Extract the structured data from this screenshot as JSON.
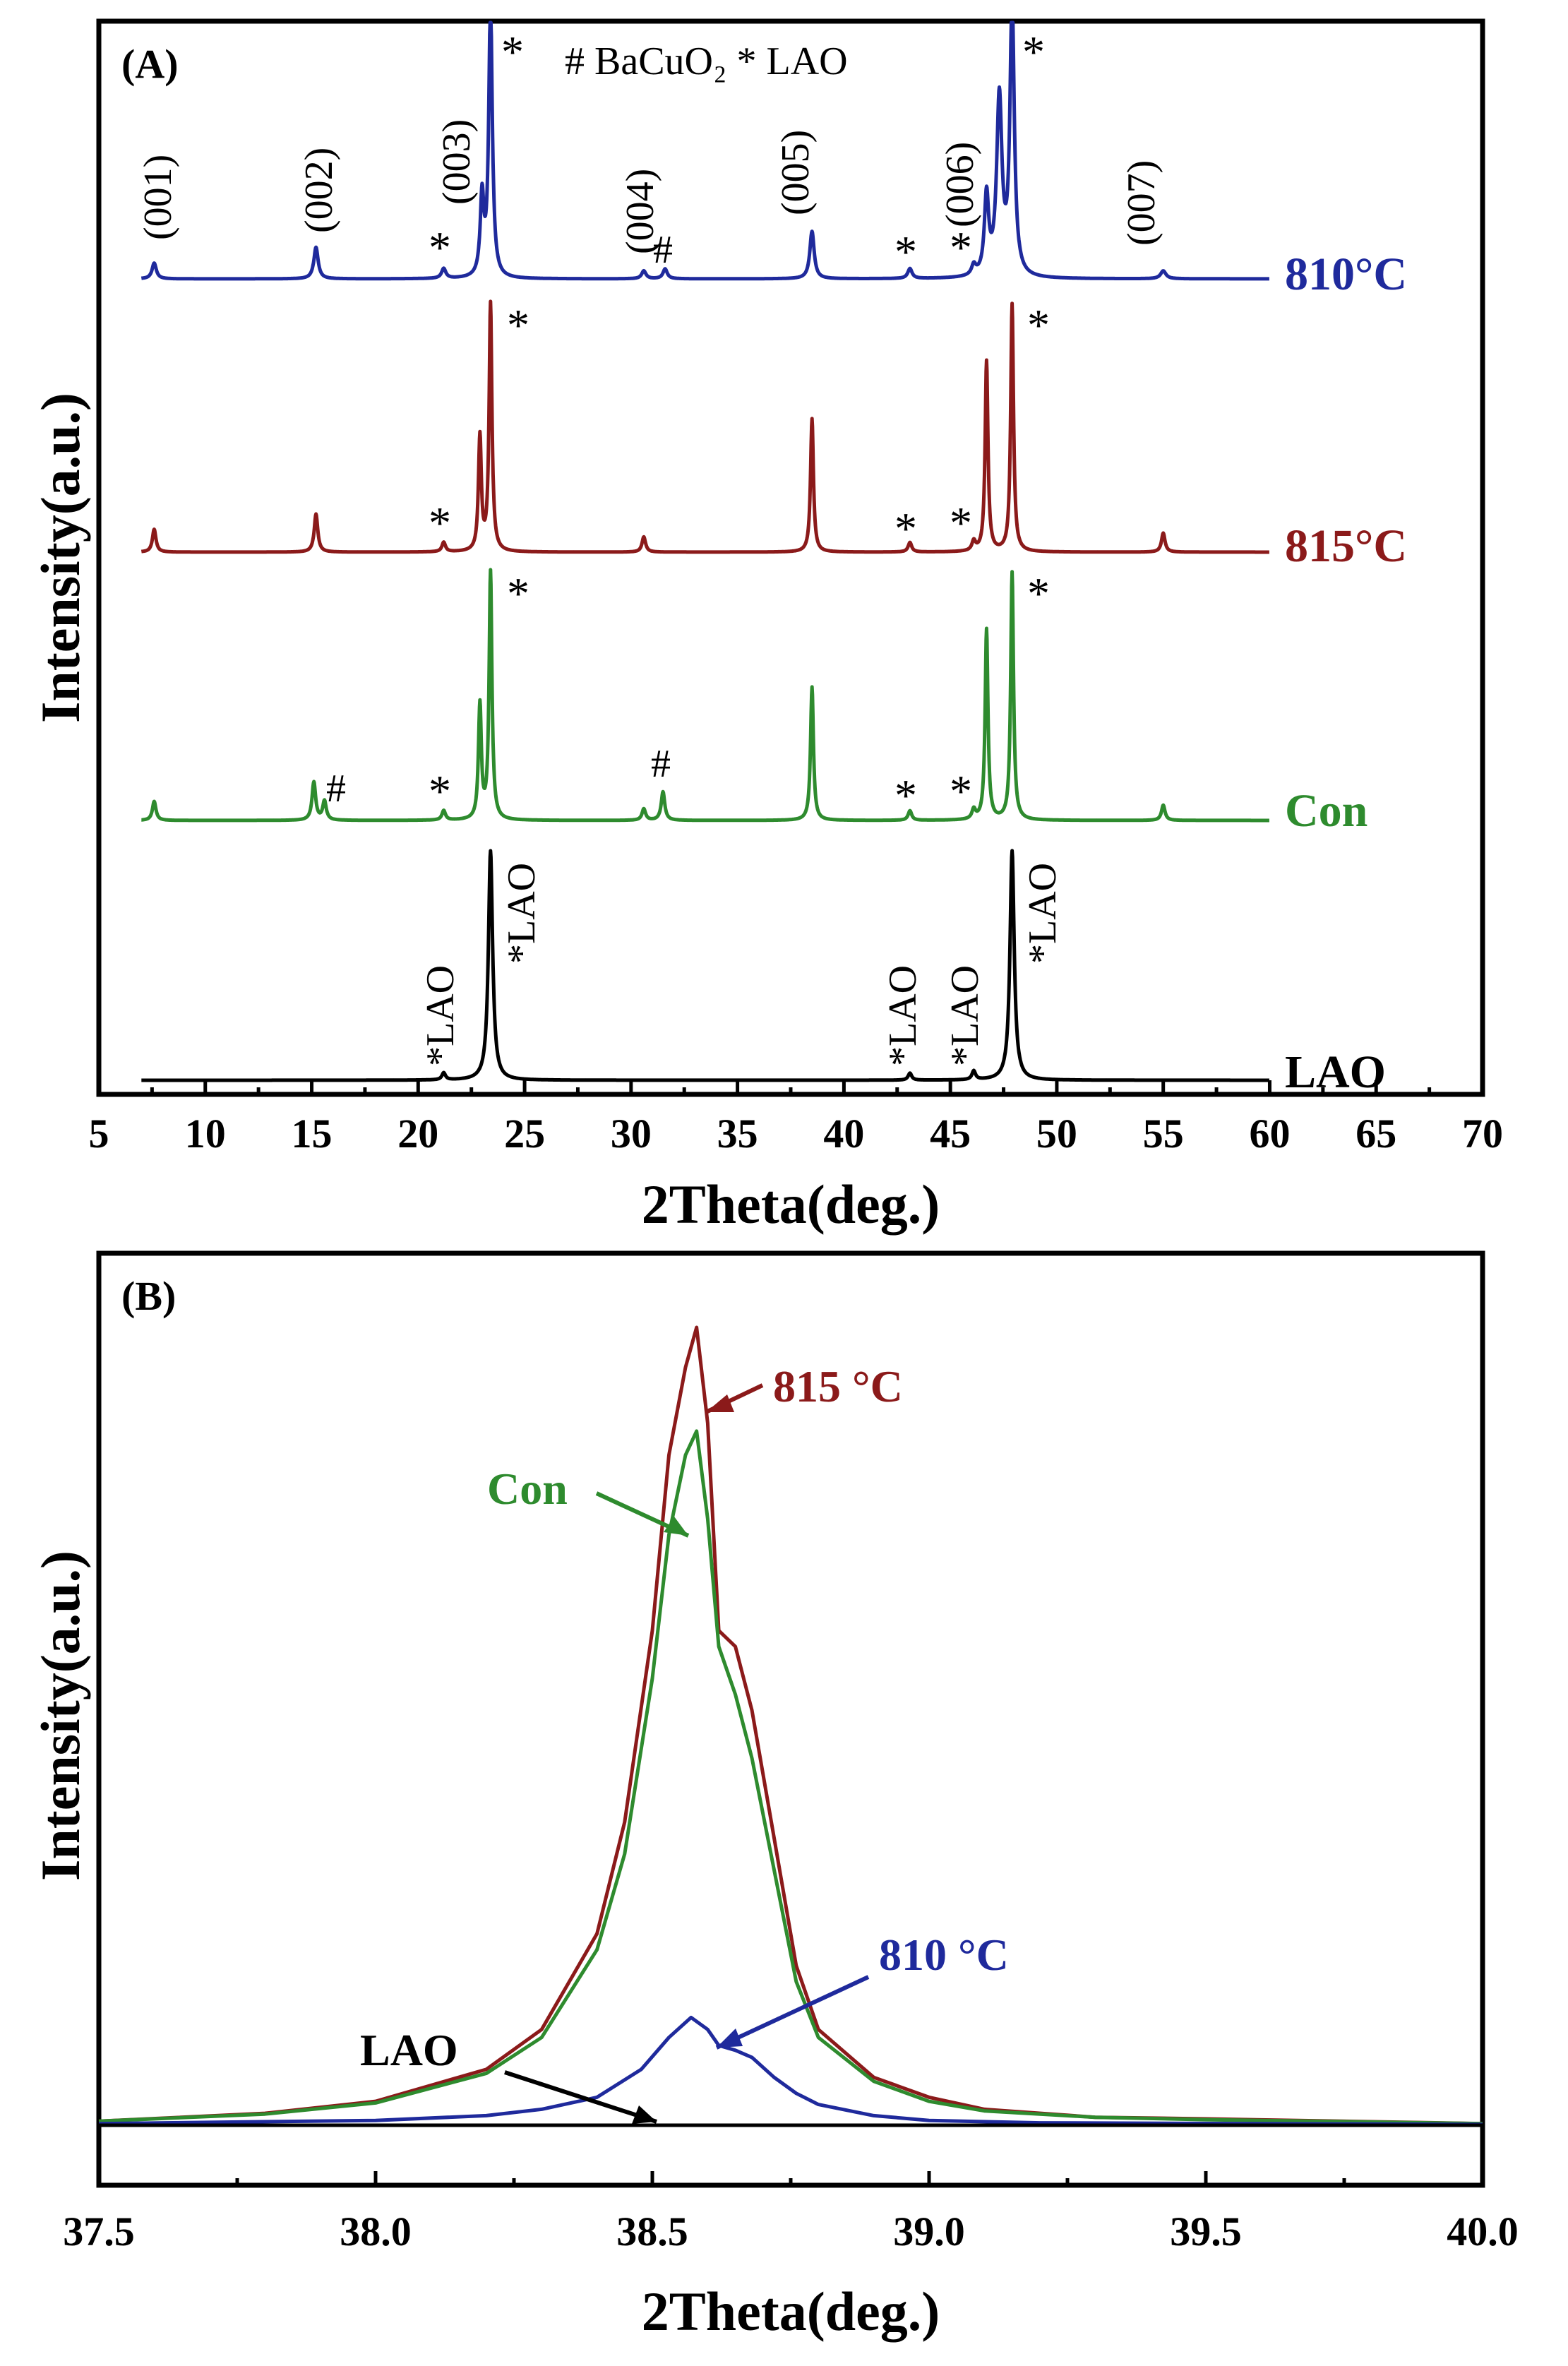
{
  "chart_data": [
    {
      "panel_label": "(A)",
      "type": "line",
      "xlabel": "2Theta(deg.)",
      "ylabel": "Intensity(a.u.)",
      "xlim": [
        5,
        70
      ],
      "xticks": [
        "5",
        "10",
        "15",
        "20",
        "25",
        "30",
        "35",
        "40",
        "45",
        "50",
        "55",
        "60",
        "65",
        "70"
      ],
      "legend": "# BaCuO₂   * LAO",
      "series": [
        {
          "name": "810°C",
          "color": "#1f2a9c",
          "baseline": 0,
          "peaks": [
            [
              7.6,
              0.8,
              0.12
            ],
            [
              15.2,
              1.6,
              0.12
            ],
            [
              21.2,
              0.5,
              0.12
            ],
            [
              23.0,
              4,
              0.1
            ],
            [
              23.4,
              14,
              0.1
            ],
            [
              30.6,
              0.4,
              0.12
            ],
            [
              31.6,
              0.5,
              0.12
            ],
            [
              38.5,
              2.4,
              0.12
            ],
            [
              43.1,
              0.5,
              0.12
            ],
            [
              46.1,
              0.5,
              0.12
            ],
            [
              46.7,
              4,
              0.12
            ],
            [
              47.3,
              9,
              0.15
            ],
            [
              47.9,
              14,
              0.12
            ],
            [
              55.0,
              0.4,
              0.15
            ]
          ],
          "peak_labels": [
            "(001)",
            "(002)",
            "(003)",
            "(004)",
            "(005)",
            "(006)",
            "(007)"
          ]
        },
        {
          "name": "815°C",
          "color": "#8b1a1a",
          "baseline": 0,
          "peaks": [
            [
              7.6,
              1.2,
              0.1
            ],
            [
              15.2,
              2.0,
              0.1
            ],
            [
              21.2,
              0.5,
              0.1
            ],
            [
              22.9,
              6,
              0.08
            ],
            [
              23.4,
              13,
              0.08
            ],
            [
              30.6,
              0.8,
              0.1
            ],
            [
              38.5,
              7,
              0.08
            ],
            [
              43.1,
              0.5,
              0.1
            ],
            [
              46.1,
              0.5,
              0.1
            ],
            [
              46.7,
              10,
              0.08
            ],
            [
              47.9,
              13,
              0.08
            ],
            [
              55.0,
              1.0,
              0.1
            ]
          ]
        },
        {
          "name": "Con",
          "color": "#2e8b2e",
          "baseline": 0,
          "peaks": [
            [
              7.6,
              1.0,
              0.1
            ],
            [
              15.1,
              2.0,
              0.1
            ],
            [
              15.6,
              1.0,
              0.1
            ],
            [
              21.2,
              0.5,
              0.1
            ],
            [
              22.9,
              6,
              0.08
            ],
            [
              23.4,
              13,
              0.08
            ],
            [
              30.6,
              0.6,
              0.1
            ],
            [
              31.5,
              1.5,
              0.1
            ],
            [
              38.5,
              7,
              0.08
            ],
            [
              43.1,
              0.5,
              0.1
            ],
            [
              46.1,
              0.5,
              0.1
            ],
            [
              46.7,
              10,
              0.08
            ],
            [
              47.9,
              13,
              0.08
            ],
            [
              55.0,
              0.8,
              0.1
            ]
          ]
        },
        {
          "name": "LAO",
          "color": "#000000",
          "baseline": 0,
          "peaks": [
            [
              21.2,
              0.4,
              0.1
            ],
            [
              23.4,
              13,
              0.12
            ],
            [
              43.1,
              0.4,
              0.1
            ],
            [
              46.1,
              0.5,
              0.1
            ],
            [
              47.9,
              13,
              0.12
            ]
          ]
        }
      ],
      "annotations": {
        "star": "*",
        "hash": "#",
        "star_lao": "*LAO"
      }
    },
    {
      "panel_label": "(B)",
      "type": "line",
      "xlabel": "2Theta(deg.)",
      "ylabel": "Intensity(a.u.)",
      "xlim": [
        37.5,
        40.0
      ],
      "xticks": [
        "37.5",
        "38.0",
        "38.5",
        "39.0",
        "39.5",
        "40.0"
      ],
      "series": [
        {
          "name": "815 °C",
          "color": "#8b1a1a",
          "x": [
            37.5,
            37.8,
            38.0,
            38.2,
            38.3,
            38.4,
            38.45,
            38.5,
            38.53,
            38.56,
            38.58,
            38.6,
            38.62,
            38.65,
            38.68,
            38.72,
            38.76,
            38.8,
            38.9,
            39.0,
            39.1,
            39.3,
            39.5,
            40.0
          ],
          "y": [
            0.005,
            0.015,
            0.03,
            0.07,
            0.12,
            0.24,
            0.38,
            0.62,
            0.84,
            0.95,
            1.0,
            0.88,
            0.62,
            0.6,
            0.52,
            0.36,
            0.2,
            0.12,
            0.06,
            0.035,
            0.02,
            0.01,
            0.008,
            0.002
          ]
        },
        {
          "name": "Con",
          "color": "#2e8b2e",
          "x": [
            37.5,
            37.8,
            38.0,
            38.2,
            38.3,
            38.4,
            38.45,
            38.5,
            38.53,
            38.56,
            38.58,
            38.6,
            38.62,
            38.65,
            38.68,
            38.72,
            38.76,
            38.8,
            38.9,
            39.0,
            39.1,
            39.3,
            39.5,
            40.0
          ],
          "y": [
            0.005,
            0.014,
            0.028,
            0.065,
            0.11,
            0.22,
            0.34,
            0.56,
            0.74,
            0.84,
            0.87,
            0.76,
            0.6,
            0.54,
            0.46,
            0.32,
            0.18,
            0.11,
            0.055,
            0.03,
            0.018,
            0.01,
            0.007,
            0.002
          ]
        },
        {
          "name": "810 °C",
          "color": "#1f2a9c",
          "x": [
            37.5,
            38.0,
            38.2,
            38.3,
            38.4,
            38.48,
            38.53,
            38.57,
            38.6,
            38.62,
            38.65,
            38.68,
            38.72,
            38.76,
            38.8,
            38.9,
            39.0,
            39.2,
            40.0
          ],
          "y": [
            0.002,
            0.006,
            0.012,
            0.02,
            0.035,
            0.07,
            0.11,
            0.135,
            0.12,
            0.1,
            0.094,
            0.085,
            0.06,
            0.04,
            0.026,
            0.012,
            0.006,
            0.003,
            0.001
          ]
        },
        {
          "name": "LAO",
          "color": "#000000",
          "x": [
            37.5,
            40.0
          ],
          "y": [
            0.0,
            0.0
          ]
        }
      ]
    }
  ]
}
